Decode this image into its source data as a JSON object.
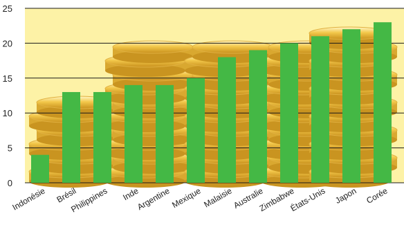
{
  "chart_data": {
    "type": "bar",
    "title": "",
    "xlabel": "",
    "ylabel": "",
    "categories": [
      "Indonésie",
      "Brésil",
      "Philippines",
      "Inde",
      "Argentine",
      "Mexique",
      "Malaisie",
      "Australie",
      "Zimbabwe",
      "États-Unis",
      "Japon",
      "Corée"
    ],
    "values": [
      4,
      13,
      13,
      14,
      14,
      15,
      18,
      19,
      20,
      21,
      22,
      23
    ],
    "ylim": [
      0,
      25
    ],
    "yticks": [
      0,
      5,
      10,
      15,
      20,
      25
    ],
    "grid": true,
    "bar_color": "#44b845",
    "background_color": "#fdf2a6"
  }
}
